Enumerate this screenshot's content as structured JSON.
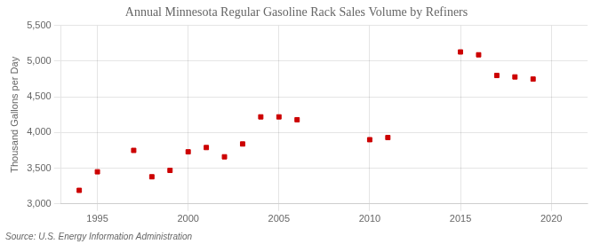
{
  "chart_data": {
    "type": "scatter",
    "title": "Annual Minnesota Regular Gasoline Rack Sales Volume by Refiners",
    "y_label": "Thousand Gallons per Day",
    "annotations": [
      "Source: U.S. Energy Information Administration"
    ],
    "x": [
      1994,
      1995,
      1997,
      1998,
      1999,
      2000,
      2001,
      2002,
      2003,
      2004,
      2005,
      2006,
      2010,
      2011,
      2015,
      2016,
      2017,
      2018,
      2019
    ],
    "values": [
      3190,
      3450,
      3750,
      3380,
      3470,
      3730,
      3790,
      3660,
      3840,
      4220,
      4220,
      4180,
      3900,
      3930,
      5130,
      5090,
      4800,
      4780,
      4750
    ],
    "color": "#cc0000",
    "marker": "square",
    "xlim": [
      1993,
      2022
    ],
    "xticks": [
      1995,
      2000,
      2005,
      2010,
      2015,
      2020
    ],
    "ylim": [
      3000,
      5500
    ],
    "yticks": [
      {
        "value": 3000,
        "label": "3,000"
      },
      {
        "value": 3500,
        "label": "3,500"
      },
      {
        "value": 4000,
        "label": "4,000"
      },
      {
        "value": 4500,
        "label": "4,500"
      },
      {
        "value": 5000,
        "label": "5,000"
      },
      {
        "value": 5500,
        "label": "5,500"
      }
    ],
    "grid": true
  }
}
